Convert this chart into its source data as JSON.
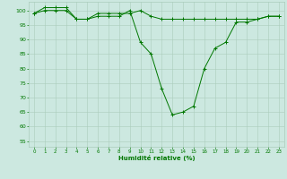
{
  "xlabel": "Humidité relative (%)",
  "ylabel": "",
  "background_color": "#cce8e0",
  "grid_color": "#aaccbb",
  "line_color": "#007700",
  "marker_color": "#007700",
  "xlim": [
    -0.5,
    23.5
  ],
  "ylim": [
    53,
    103
  ],
  "yticks": [
    55,
    60,
    65,
    70,
    75,
    80,
    85,
    90,
    95,
    100
  ],
  "xticks": [
    0,
    1,
    2,
    3,
    4,
    5,
    6,
    7,
    8,
    9,
    10,
    11,
    12,
    13,
    14,
    15,
    16,
    17,
    18,
    19,
    20,
    21,
    22,
    23
  ],
  "series1_x": [
    0,
    1,
    2,
    3,
    4,
    5,
    6,
    7,
    8,
    9,
    10,
    11,
    12,
    13,
    14,
    15,
    16,
    17,
    18,
    19,
    20,
    21,
    22,
    23
  ],
  "series1_y": [
    99,
    101,
    101,
    101,
    97,
    97,
    99,
    99,
    99,
    99,
    100,
    98,
    97,
    97,
    97,
    97,
    97,
    97,
    97,
    97,
    97,
    97,
    98,
    98
  ],
  "series2_x": [
    0,
    1,
    2,
    3,
    4,
    5,
    6,
    7,
    8,
    9,
    10,
    11,
    12,
    13,
    14,
    15,
    16,
    17,
    18,
    19,
    20,
    21,
    22,
    23
  ],
  "series2_y": [
    99,
    100,
    100,
    100,
    97,
    97,
    98,
    98,
    98,
    100,
    89,
    85,
    73,
    64,
    65,
    67,
    80,
    87,
    89,
    96,
    96,
    97,
    98,
    98
  ]
}
